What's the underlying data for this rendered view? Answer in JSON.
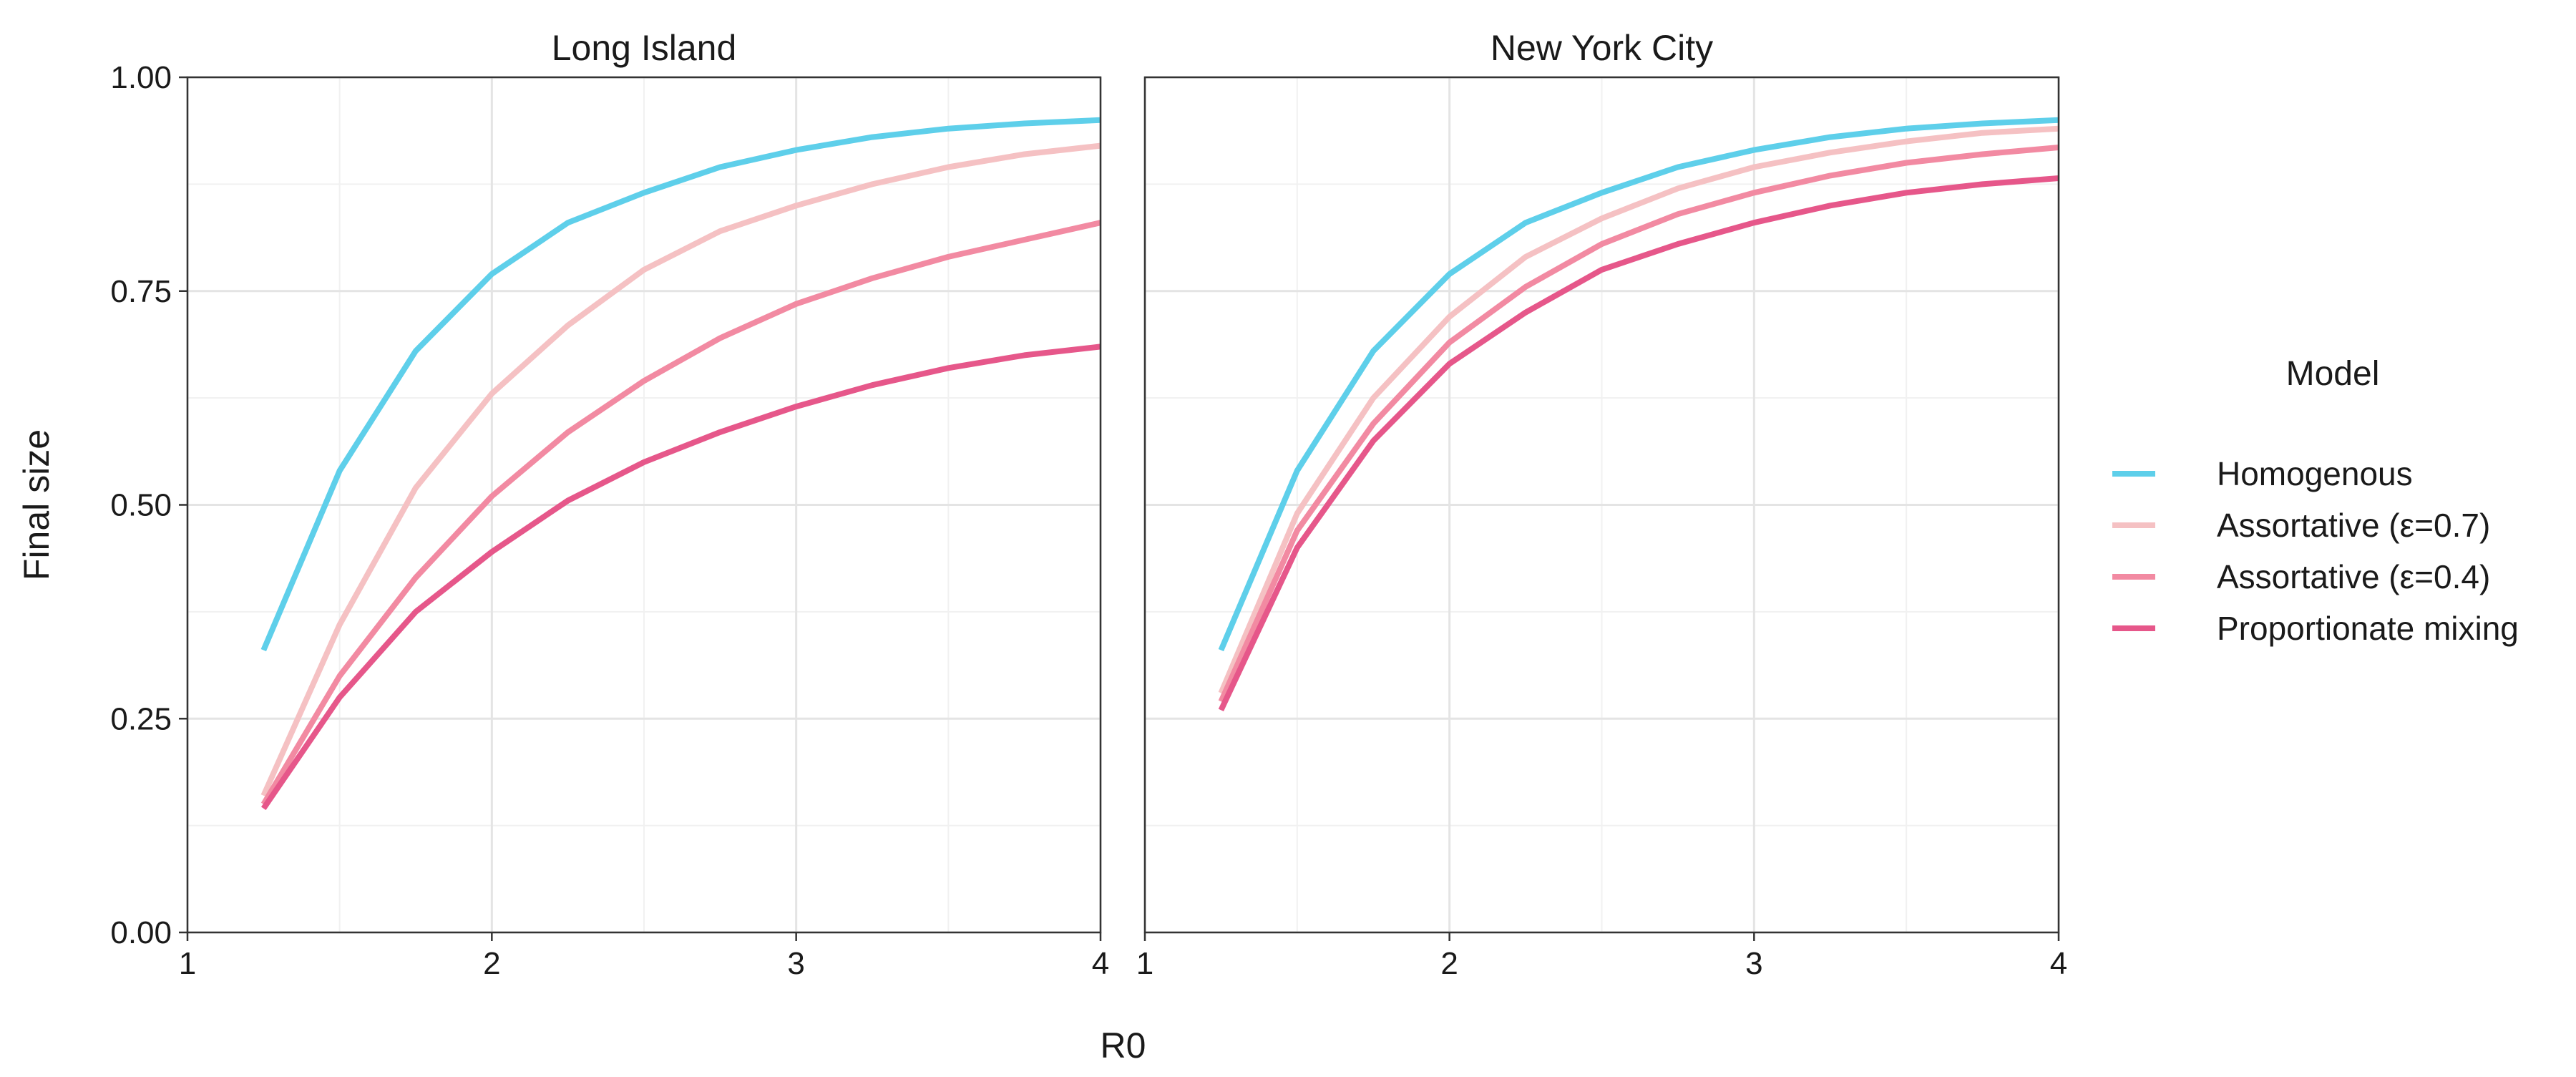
{
  "chart_data": {
    "type": "line",
    "xlabel": "R0",
    "ylabel": "Final size",
    "xlim": [
      1,
      4
    ],
    "ylim": [
      0,
      1
    ],
    "x_ticks": [
      "1",
      "2",
      "3",
      "4"
    ],
    "y_ticks": [
      "0.00",
      "0.25",
      "0.50",
      "0.75",
      "1.00"
    ],
    "grid": true,
    "legend": {
      "title": "Model",
      "placement": "right",
      "entries": [
        "Homogenous",
        "Assortative (ε=0.7)",
        "Assortative (ε=0.4)",
        "Proportionate mixing"
      ]
    },
    "colors": [
      "#5ecfea",
      "#f5c1c3",
      "#f28aa2",
      "#e6578a"
    ],
    "x": [
      1.25,
      1.5,
      1.75,
      2.0,
      2.25,
      2.5,
      2.75,
      3.0,
      3.25,
      3.5,
      3.75,
      4.0
    ],
    "panels": [
      {
        "title": "Long Island",
        "series": [
          {
            "name": "Homogenous",
            "values": [
              0.33,
              0.54,
              0.68,
              0.77,
              0.83,
              0.865,
              0.895,
              0.915,
              0.93,
              0.94,
              0.946,
              0.95
            ]
          },
          {
            "name": "Assortative (ε=0.7)",
            "values": [
              0.16,
              0.36,
              0.52,
              0.63,
              0.71,
              0.775,
              0.82,
              0.85,
              0.875,
              0.895,
              0.91,
              0.92
            ]
          },
          {
            "name": "Assortative (ε=0.4)",
            "values": [
              0.15,
              0.3,
              0.415,
              0.51,
              0.585,
              0.645,
              0.695,
              0.735,
              0.765,
              0.79,
              0.81,
              0.83
            ]
          },
          {
            "name": "Proportionate mixing",
            "values": [
              0.145,
              0.275,
              0.375,
              0.445,
              0.505,
              0.55,
              0.585,
              0.615,
              0.64,
              0.66,
              0.675,
              0.685
            ]
          }
        ]
      },
      {
        "title": "New York City",
        "series": [
          {
            "name": "Homogenous",
            "values": [
              0.33,
              0.54,
              0.68,
              0.77,
              0.83,
              0.865,
              0.895,
              0.915,
              0.93,
              0.94,
              0.946,
              0.95
            ]
          },
          {
            "name": "Assortative (ε=0.7)",
            "values": [
              0.28,
              0.49,
              0.625,
              0.72,
              0.79,
              0.835,
              0.87,
              0.895,
              0.912,
              0.925,
              0.935,
              0.94
            ]
          },
          {
            "name": "Assortative (ε=0.4)",
            "values": [
              0.27,
              0.47,
              0.595,
              0.69,
              0.755,
              0.805,
              0.84,
              0.865,
              0.885,
              0.9,
              0.91,
              0.918
            ]
          },
          {
            "name": "Proportionate mixing",
            "values": [
              0.26,
              0.45,
              0.575,
              0.665,
              0.725,
              0.775,
              0.805,
              0.83,
              0.85,
              0.865,
              0.875,
              0.882
            ]
          }
        ]
      }
    ]
  }
}
